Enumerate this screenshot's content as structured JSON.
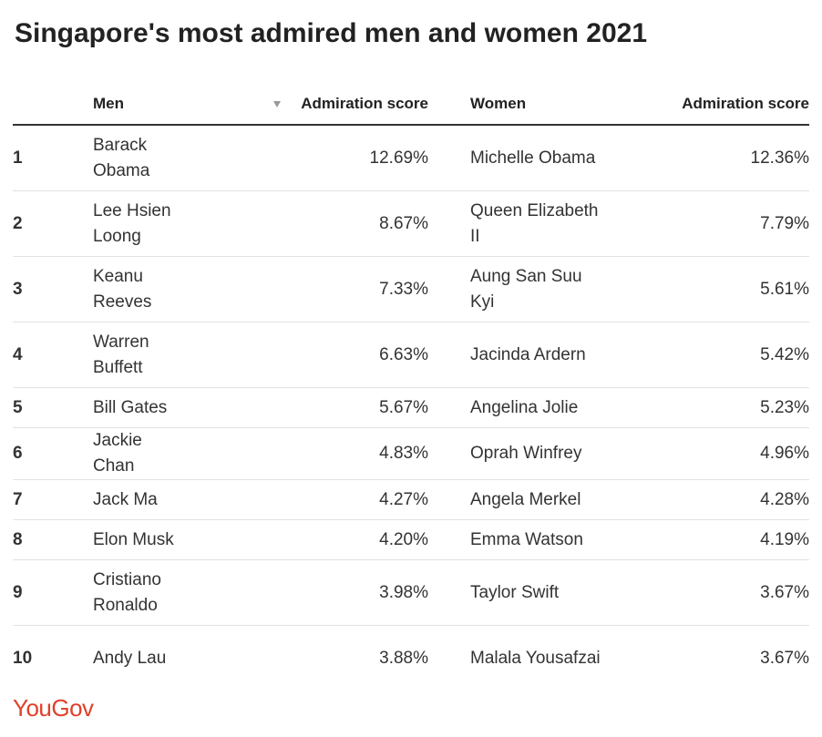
{
  "title": "Singapore's most admired men and women 2021",
  "chart_data": {
    "type": "table",
    "columns": [
      "",
      "Men",
      "Admiration score",
      "Women",
      "Admiration score"
    ],
    "rows": [
      {
        "rank": "1",
        "men": "Barack Obama",
        "men_score": "12.69%",
        "women": "Michelle Obama",
        "women_score": "12.36%"
      },
      {
        "rank": "2",
        "men": "Lee Hsien Loong",
        "men_score": "8.67%",
        "women": "Queen Elizabeth II",
        "women_score": "7.79%"
      },
      {
        "rank": "3",
        "men": "Keanu Reeves",
        "men_score": "7.33%",
        "women": "Aung San Suu Kyi",
        "women_score": "5.61%"
      },
      {
        "rank": "4",
        "men": "Warren Buffett",
        "men_score": "6.63%",
        "women": "Jacinda Ardern",
        "women_score": "5.42%"
      },
      {
        "rank": "5",
        "men": "Bill Gates",
        "men_score": "5.67%",
        "women": "Angelina Jolie",
        "women_score": "5.23%"
      },
      {
        "rank": "6",
        "men": "Jackie Chan",
        "men_score": "4.83%",
        "women": "Oprah Winfrey",
        "women_score": "4.96%"
      },
      {
        "rank": "7",
        "men": "Jack Ma",
        "men_score": "4.27%",
        "women": "Angela Merkel",
        "women_score": "4.28%"
      },
      {
        "rank": "8",
        "men": "Elon Musk",
        "men_score": "4.20%",
        "women": "Emma Watson",
        "women_score": "4.19%"
      },
      {
        "rank": "9",
        "men": "Cristiano Ronaldo",
        "men_score": "3.98%",
        "women": "Taylor Swift",
        "women_score": "3.67%"
      },
      {
        "rank": "10",
        "men": "Andy Lau",
        "men_score": "3.88%",
        "women": "Malala Yousafzai",
        "women_score": "3.67%"
      }
    ],
    "sorted_column": "Men",
    "sort_direction": "descending"
  },
  "table": {
    "header_rank": "",
    "header_men": "Men",
    "header_men_score": "Admiration score",
    "header_women": "Women",
    "header_women_score": "Admiration score",
    "sort_icon": "sort-down-icon",
    "rows": [
      {
        "rank": "1",
        "men": "Barack Obama",
        "men_score": "12.69%",
        "women": "Michelle Obama",
        "women_score": "12.36%"
      },
      {
        "rank": "2",
        "men": "Lee Hsien Loong",
        "men_score": "8.67%",
        "women": "Queen Elizabeth II",
        "women_score": "7.79%"
      },
      {
        "rank": "3",
        "men": "Keanu Reeves",
        "men_score": "7.33%",
        "women": "Aung San Suu Kyi",
        "women_score": "5.61%"
      },
      {
        "rank": "4",
        "men": "Warren Buffett",
        "men_score": "6.63%",
        "women": "Jacinda Ardern",
        "women_score": "5.42%"
      },
      {
        "rank": "5",
        "men": "Bill Gates",
        "men_score": "5.67%",
        "women": "Angelina Jolie",
        "women_score": "5.23%"
      },
      {
        "rank": "6",
        "men": "Jackie Chan",
        "men_score": "4.83%",
        "women": "Oprah Winfrey",
        "women_score": "4.96%"
      },
      {
        "rank": "7",
        "men": "Jack Ma",
        "men_score": "4.27%",
        "women": "Angela Merkel",
        "women_score": "4.28%"
      },
      {
        "rank": "8",
        "men": "Elon Musk",
        "men_score": "4.20%",
        "women": "Emma Watson",
        "women_score": "4.19%"
      },
      {
        "rank": "9",
        "men": "Cristiano Ronaldo",
        "men_score": "3.98%",
        "women": "Taylor Swift",
        "women_score": "3.67%"
      },
      {
        "rank": "10",
        "men": "Andy Lau",
        "men_score": "3.88%",
        "women": "Malala Yousafzai",
        "women_score": "3.67%"
      }
    ]
  },
  "footer": {
    "logo": "YouGov",
    "logo_color": "#e0402b"
  }
}
